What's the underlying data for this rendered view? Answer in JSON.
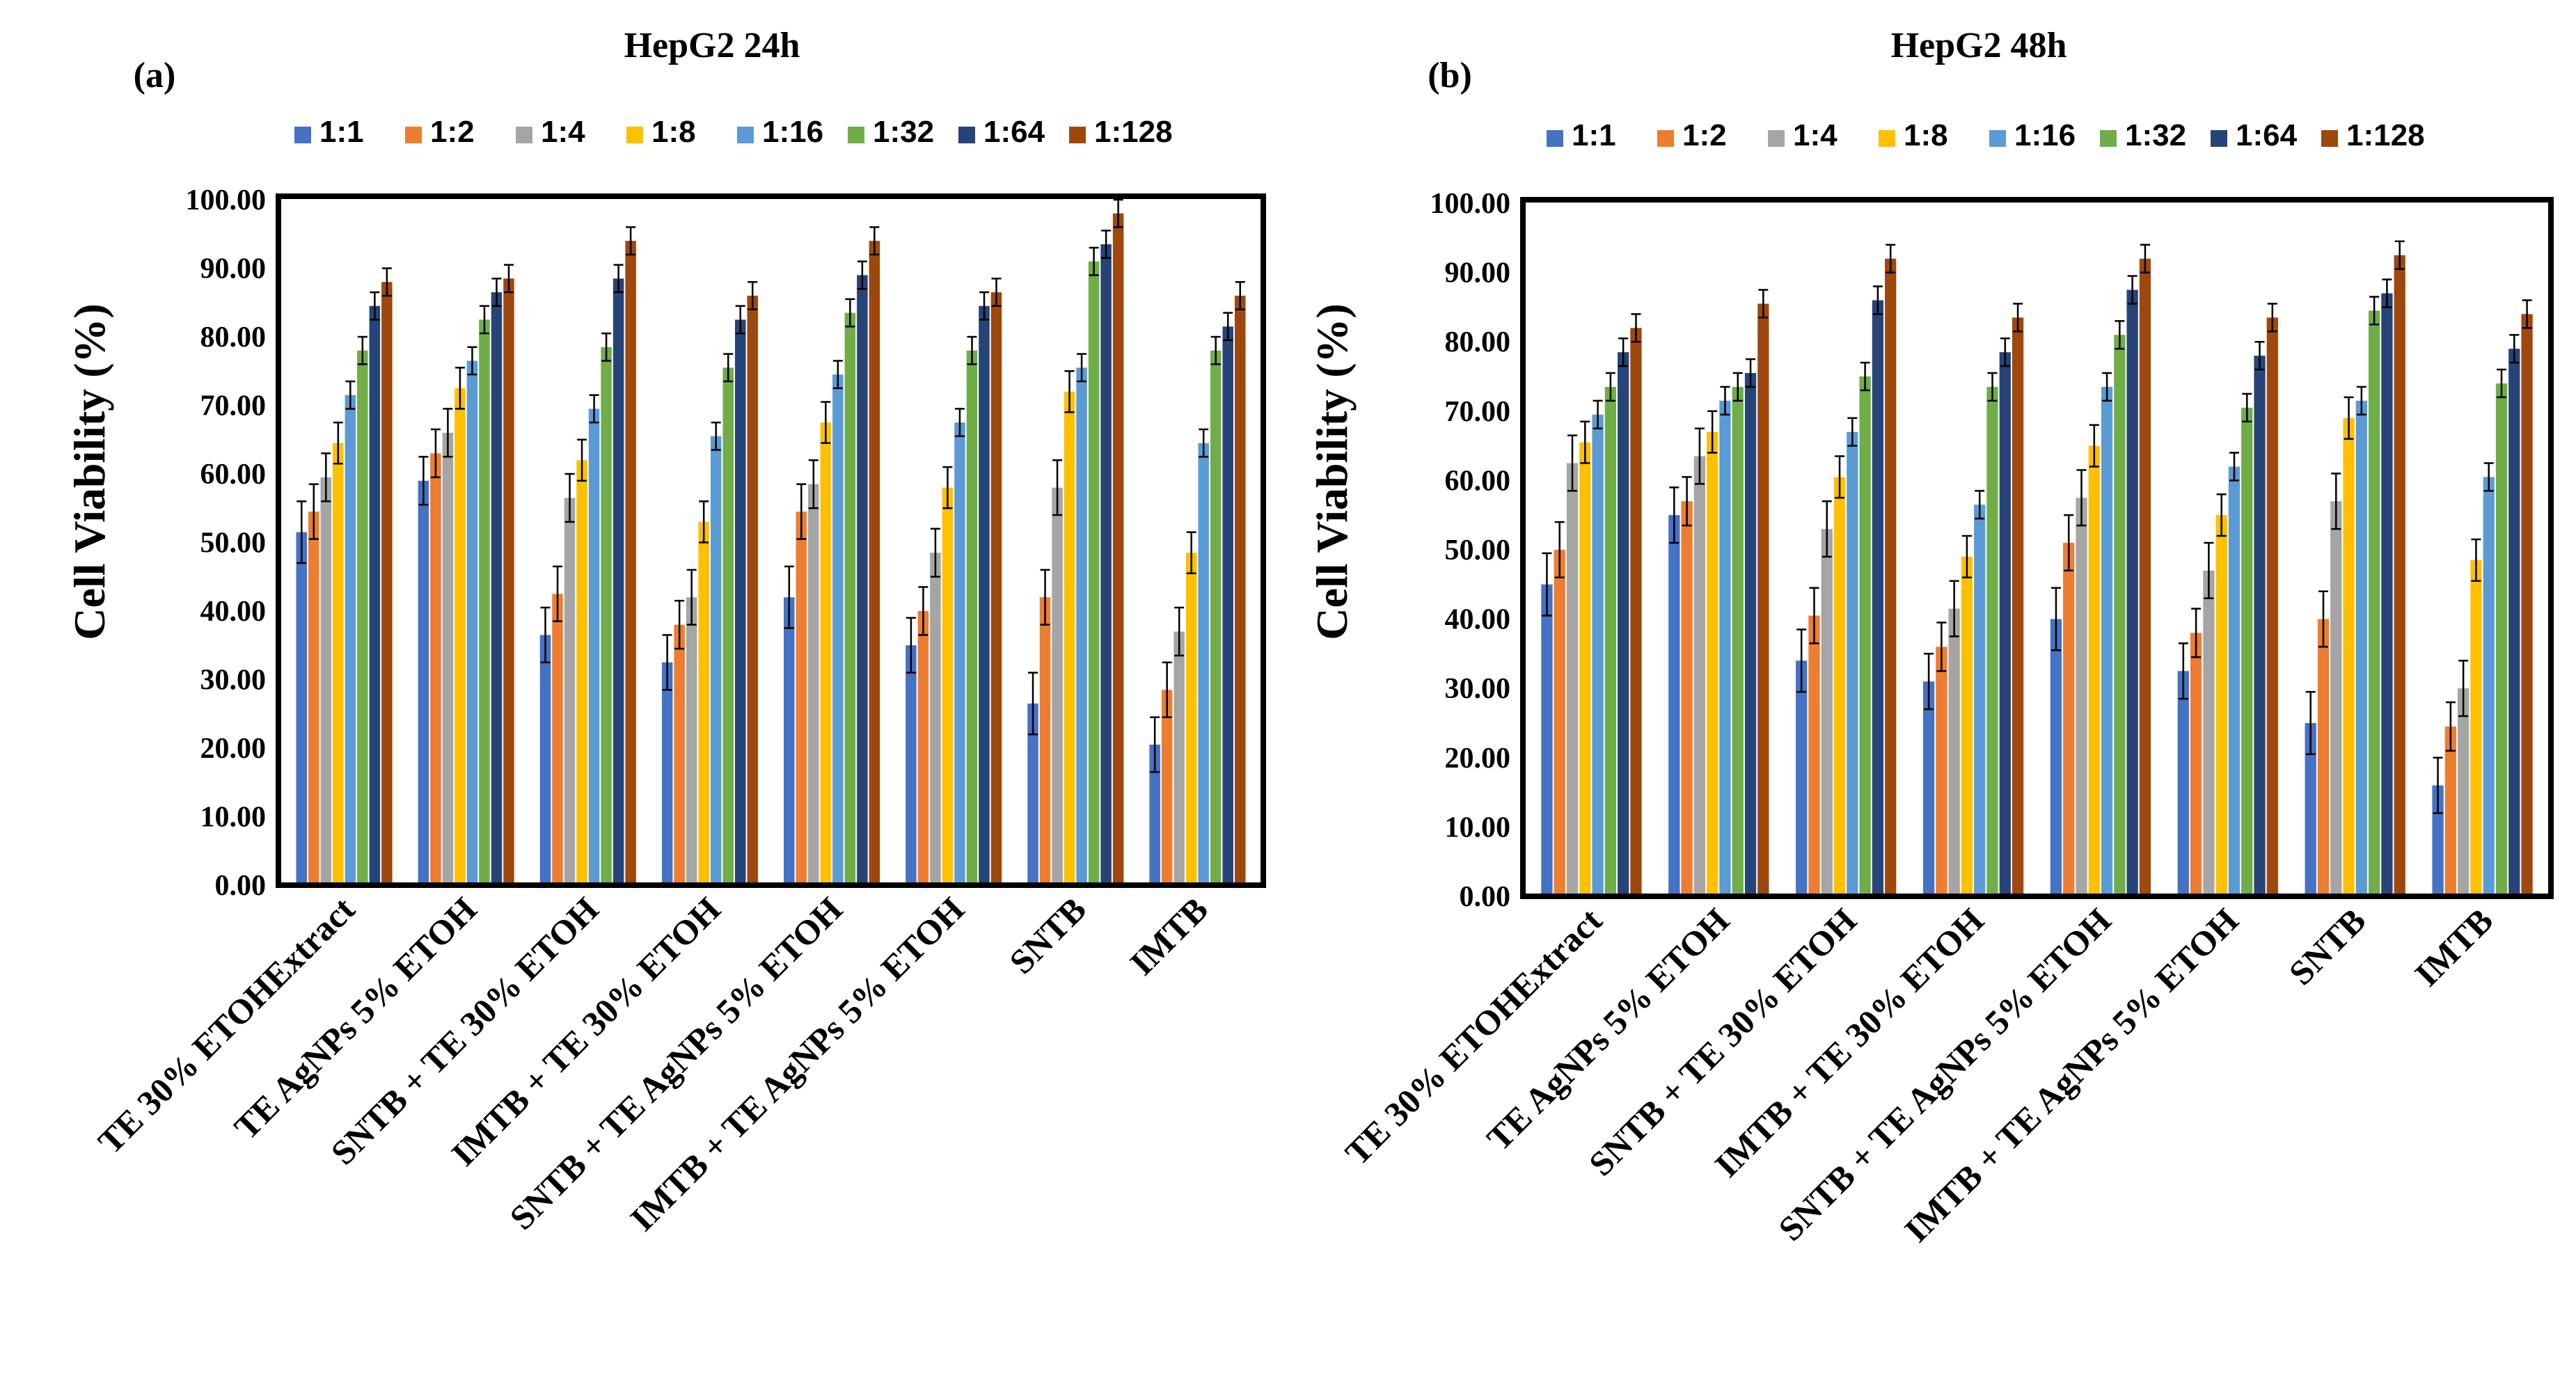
{
  "series_colors": [
    "#4472c4",
    "#ed7d31",
    "#a5a5a5",
    "#ffc000",
    "#5b9bd5",
    "#70ad47",
    "#264478",
    "#9e480e"
  ],
  "chart_data": [
    {
      "type": "bar",
      "panel_label": "(a)",
      "title": "HepG2 24h",
      "xlabel": "",
      "ylabel": "Cell  Viability (%)",
      "ylim": [
        0,
        100
      ],
      "yticks": [
        "0.00",
        "10.00",
        "20.00",
        "30.00",
        "40.00",
        "50.00",
        "60.00",
        "70.00",
        "80.00",
        "90.00",
        "100.00"
      ],
      "categories": [
        "TE 30% ETOHExtract",
        "TE AgNPs 5% ETOH",
        "SNTB + TE 30% ETOH",
        "IMTB + TE 30% ETOH",
        "SNTB + TE AgNPs 5% ETOH",
        "IMTB + TE AgNPs 5% ETOH",
        "SNTB",
        "IMTB"
      ],
      "series": [
        {
          "name": "1:1",
          "values": [
            51.5,
            59.0,
            36.5,
            32.5,
            42.0,
            35.0,
            26.5,
            20.5
          ],
          "errors": [
            4.5,
            3.5,
            4.0,
            4.0,
            4.5,
            4.0,
            4.5,
            4.0
          ]
        },
        {
          "name": "1:2",
          "values": [
            54.5,
            63.0,
            42.5,
            38.0,
            54.5,
            40.0,
            42.0,
            28.5
          ],
          "errors": [
            4.0,
            3.5,
            4.0,
            3.5,
            4.0,
            3.5,
            4.0,
            4.0
          ]
        },
        {
          "name": "1:4",
          "values": [
            59.5,
            66.0,
            56.5,
            42.0,
            58.5,
            48.5,
            58.0,
            37.0
          ],
          "errors": [
            3.5,
            3.5,
            3.5,
            4.0,
            3.5,
            3.5,
            4.0,
            3.5
          ]
        },
        {
          "name": "1:8",
          "values": [
            64.5,
            72.5,
            62.0,
            53.0,
            67.5,
            58.0,
            72.0,
            48.5
          ],
          "errors": [
            3.0,
            3.0,
            3.0,
            3.0,
            3.0,
            3.0,
            3.0,
            3.0
          ]
        },
        {
          "name": "1:16",
          "values": [
            71.5,
            76.5,
            69.5,
            65.5,
            74.5,
            67.5,
            75.5,
            64.5
          ],
          "errors": [
            2.0,
            2.0,
            2.0,
            2.0,
            2.0,
            2.0,
            2.0,
            2.0
          ]
        },
        {
          "name": "1:32",
          "values": [
            78.0,
            82.5,
            78.5,
            75.5,
            83.5,
            78.0,
            91.0,
            78.0
          ],
          "errors": [
            2.0,
            2.0,
            2.0,
            2.0,
            2.0,
            2.0,
            2.0,
            2.0
          ]
        },
        {
          "name": "1:64",
          "values": [
            84.5,
            86.5,
            88.5,
            82.5,
            89.0,
            84.5,
            93.5,
            81.5
          ],
          "errors": [
            2.0,
            2.0,
            2.0,
            2.0,
            2.0,
            2.0,
            2.0,
            2.0
          ]
        },
        {
          "name": "1:128",
          "values": [
            88.0,
            88.5,
            94.0,
            86.0,
            94.0,
            86.5,
            98.0,
            86.0
          ],
          "errors": [
            2.0,
            2.0,
            2.0,
            2.0,
            2.0,
            2.0,
            2.0,
            2.0
          ]
        }
      ]
    },
    {
      "type": "bar",
      "panel_label": "(b)",
      "title": "HepG2 48h",
      "xlabel": "",
      "ylabel": "Cell Viability (%)",
      "ylim": [
        0,
        100
      ],
      "yticks": [
        "0.00",
        "10.00",
        "20.00",
        "30.00",
        "40.00",
        "50.00",
        "60.00",
        "70.00",
        "80.00",
        "90.00",
        "100.00"
      ],
      "categories": [
        "TE 30% ETOHExtract",
        "TE AgNPs 5% ETOH",
        "SNTB + TE 30% ETOH",
        "IMTB + TE 30% ETOH",
        "SNTB + TE AgNPs 5% ETOH",
        "IMTB + TE AgNPs 5% ETOH",
        "SNTB",
        "IMTB"
      ],
      "series": [
        {
          "name": "1:1",
          "values": [
            45.0,
            55.0,
            34.0,
            31.0,
            40.0,
            32.5,
            25.0,
            16.0
          ],
          "errors": [
            4.5,
            4.0,
            4.5,
            4.0,
            4.5,
            4.0,
            4.5,
            4.0
          ]
        },
        {
          "name": "1:2",
          "values": [
            50.0,
            57.0,
            40.5,
            36.0,
            51.0,
            38.0,
            40.0,
            24.5
          ],
          "errors": [
            4.0,
            3.5,
            4.0,
            3.5,
            4.0,
            3.5,
            4.0,
            3.5
          ]
        },
        {
          "name": "1:4",
          "values": [
            62.5,
            63.5,
            53.0,
            41.5,
            57.5,
            47.0,
            57.0,
            30.0
          ],
          "errors": [
            4.0,
            4.0,
            4.0,
            4.0,
            4.0,
            4.0,
            4.0,
            4.0
          ]
        },
        {
          "name": "1:8",
          "values": [
            65.5,
            67.0,
            60.5,
            49.0,
            65.0,
            55.0,
            69.0,
            48.5
          ],
          "errors": [
            3.0,
            3.0,
            3.0,
            3.0,
            3.0,
            3.0,
            3.0,
            3.0
          ]
        },
        {
          "name": "1:16",
          "values": [
            69.5,
            71.5,
            67.0,
            56.5,
            73.5,
            62.0,
            71.5,
            60.5
          ],
          "errors": [
            2.0,
            2.0,
            2.0,
            2.0,
            2.0,
            2.0,
            2.0,
            2.0
          ]
        },
        {
          "name": "1:32",
          "values": [
            73.5,
            73.5,
            75.0,
            73.5,
            81.0,
            70.5,
            84.5,
            74.0
          ],
          "errors": [
            2.0,
            2.0,
            2.0,
            2.0,
            2.0,
            2.0,
            2.0,
            2.0
          ]
        },
        {
          "name": "1:64",
          "values": [
            78.5,
            75.5,
            86.0,
            78.5,
            87.5,
            78.0,
            87.0,
            79.0
          ],
          "errors": [
            2.0,
            2.0,
            2.0,
            2.0,
            2.0,
            2.0,
            2.0,
            2.0
          ]
        },
        {
          "name": "1:128",
          "values": [
            82.0,
            85.5,
            92.0,
            83.5,
            92.0,
            83.5,
            92.5,
            84.0
          ],
          "errors": [
            2.0,
            2.0,
            2.0,
            2.0,
            2.0,
            2.0,
            2.0,
            2.0
          ]
        }
      ]
    }
  ]
}
